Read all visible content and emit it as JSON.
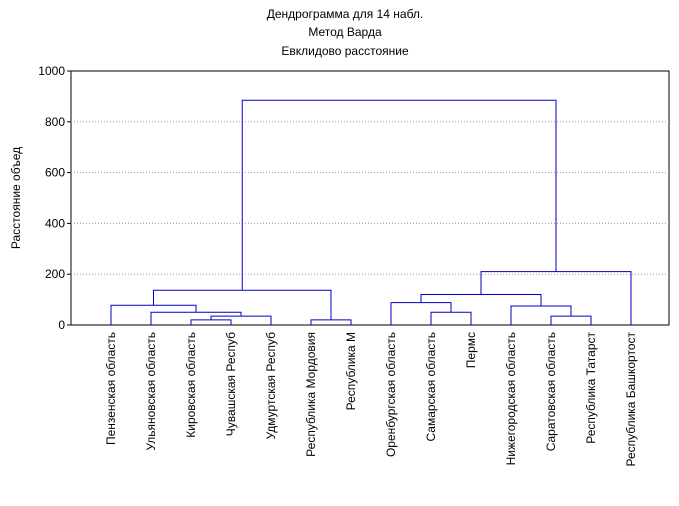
{
  "chart_data": {
    "type": "dendrogram",
    "title": "Дендрограмма для 14 набл.",
    "subtitle": "Метод Варда",
    "subtitle2": "Евклидово расстояние",
    "ylabel": "Расстояние объед",
    "categories": [
      "Пензенская область",
      "Ульяновская область",
      "Кировская область",
      "Чувашская Респуб",
      "Удмуртская Респуб",
      "Республика Мордовия",
      "Республика М",
      "Оренбургская область",
      "Самарская область",
      "Пермс",
      "Нижегородская область",
      "Саратовская область",
      "Республика Татарст",
      "Республика Башкортост"
    ],
    "merges": [
      {
        "left": 2,
        "right": 3,
        "height": 20
      },
      {
        "left": 14,
        "right": 4,
        "height": 35
      },
      {
        "left": 1,
        "right": 15,
        "height": 50
      },
      {
        "left": 0,
        "right": 16,
        "height": 78
      },
      {
        "left": 5,
        "right": 6,
        "height": 20
      },
      {
        "left": 17,
        "right": 18,
        "height": 137
      },
      {
        "left": 8,
        "right": 9,
        "height": 50
      },
      {
        "left": 7,
        "right": 20,
        "height": 88
      },
      {
        "left": 11,
        "right": 12,
        "height": 35
      },
      {
        "left": 10,
        "right": 22,
        "height": 75
      },
      {
        "left": 21,
        "right": 23,
        "height": 120
      },
      {
        "left": 24,
        "right": 13,
        "height": 210
      },
      {
        "left": 19,
        "right": 25,
        "height": 885
      }
    ],
    "color": "#0000c8",
    "ylim": [
      0,
      1000
    ],
    "yticks": [
      0,
      200,
      400,
      600,
      800,
      1000
    ],
    "grid": true
  }
}
